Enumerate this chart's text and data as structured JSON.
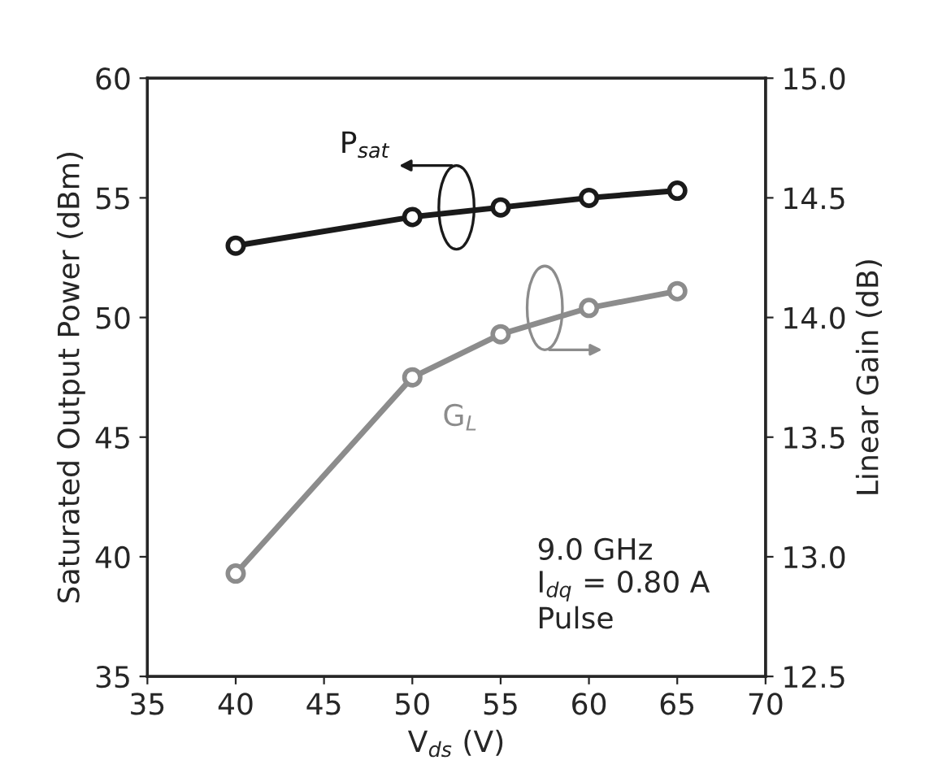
{
  "chart_data": {
    "type": "line",
    "xlabel": "V$_{ds}$ (V)",
    "ylabel": "Saturated Output Power (dBm)",
    "y2label": "Linear Gain (dB)",
    "x": [
      40,
      50,
      55,
      60,
      65
    ],
    "series": [
      {
        "name": "P$_{sat}$",
        "color": "#1a1a1a",
        "values": [
          53.0,
          54.2,
          54.6,
          55.0,
          55.3
        ]
      },
      {
        "name": "G$_{L}$",
        "color": "#8c8c8c",
        "axis": "y2",
        "values": [
          12.93,
          13.75,
          13.93,
          14.04,
          14.11
        ]
      }
    ],
    "xlim": [
      35,
      70
    ],
    "xticks": [
      35,
      40,
      45,
      50,
      55,
      60,
      65,
      70
    ],
    "ylim": [
      35,
      60
    ],
    "yticks": [
      35,
      40,
      45,
      50,
      55,
      60
    ],
    "y2lim": [
      12.5,
      15.0
    ],
    "y2ticks": [
      {
        "value": 12.5,
        "label": "12.5"
      },
      {
        "value": 13.0,
        "label": "13.0"
      },
      {
        "value": 13.5,
        "label": "13.5"
      },
      {
        "value": 14.0,
        "label": "14.0"
      },
      {
        "value": 14.5,
        "label": "14.5"
      },
      {
        "value": 15.0,
        "label": "15.0"
      }
    ],
    "annotations": [
      "9.0 GHz",
      "I$_{dq}$ = 0.80 A",
      "Pulse"
    ],
    "marker": "circle",
    "line_style": "solid",
    "grid": false,
    "legend": false
  }
}
